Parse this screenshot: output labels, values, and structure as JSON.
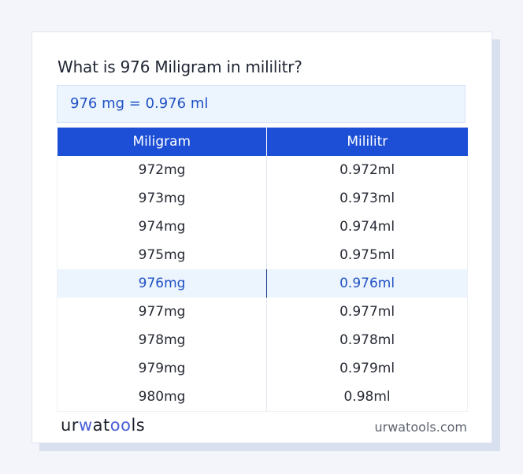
{
  "title": "What is 976 Miligram in mililitr?",
  "result": "976 mg = 0.976 ml",
  "table": {
    "headers": [
      "Miligram",
      "Mililitr"
    ],
    "rows": [
      [
        "972mg",
        "0.972ml"
      ],
      [
        "973mg",
        "0.973ml"
      ],
      [
        "974mg",
        "0.974ml"
      ],
      [
        "975mg",
        "0.975ml"
      ],
      [
        "976mg",
        "0.976ml"
      ],
      [
        "977mg",
        "0.977ml"
      ],
      [
        "978mg",
        "0.978ml"
      ],
      [
        "979mg",
        "0.979ml"
      ],
      [
        "980mg",
        "0.98ml"
      ]
    ],
    "highlighted_row": 4
  },
  "footer": {
    "logo_parts": [
      "ur",
      "w",
      "at",
      "oo",
      "ls"
    ],
    "site": "urwatools.com"
  },
  "colors": {
    "accent": "#1d4fd6",
    "highlight_bg": "#ecf4fe",
    "highlight_text": "#2152c4"
  }
}
